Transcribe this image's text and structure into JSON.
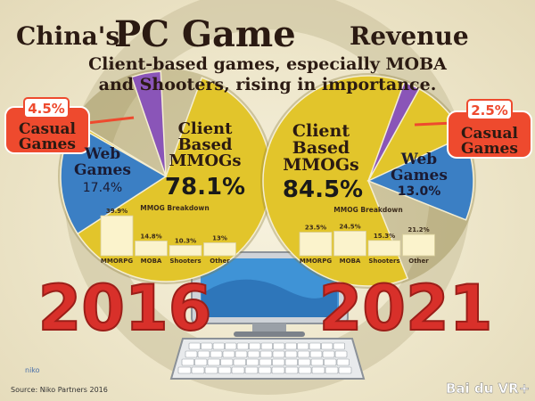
{
  "header": {
    "title_pre": "China's",
    "title_main": "PC Game",
    "title_post": "Revenue",
    "subtitle_line1": "Client-based games, especially MOBA",
    "subtitle_line2": "and Shooters, rising in importance."
  },
  "footer": {
    "source": "Source: Niko Partners 2016",
    "logo_text": "niko",
    "watermark": "Bai du VR+"
  },
  "colors": {
    "client": "#e2c52b",
    "web": "#3b7fc4",
    "casual": "#8a55b8",
    "year": "#d8302a",
    "callout": "#ee4a2e",
    "ink": "#2b1a12",
    "bar": "#fbf3cc"
  },
  "chart_data": [
    {
      "type": "pie",
      "year": "2016",
      "categories": [
        "Client Based MMOGs",
        "Web Games",
        "Casual Games"
      ],
      "values": [
        78.1,
        17.4,
        4.5
      ],
      "labels": {
        "client_l1": "Client",
        "client_l2": "Based",
        "client_l3": "MMOGs",
        "client_val": "78.1%",
        "web_l1": "Web",
        "web_l2": "Games",
        "web_val": "17.4%",
        "casual_val": "4.5%",
        "casual_l1": "Casual",
        "casual_l2": "Games"
      },
      "breakdown": {
        "type": "bar",
        "title": "MMOG Breakdown",
        "categories": [
          "MMORPG",
          "MOBA",
          "Shooters",
          "Other"
        ],
        "values": [
          39.9,
          14.8,
          10.3,
          13
        ],
        "value_labels": [
          "39.9%",
          "14.8%",
          "10.3%",
          "13%"
        ]
      }
    },
    {
      "type": "pie",
      "year": "2021",
      "categories": [
        "Client Based MMOGs",
        "Web Games",
        "Casual Games"
      ],
      "values": [
        84.5,
        13.0,
        2.5
      ],
      "labels": {
        "client_l1": "Client",
        "client_l2": "Based",
        "client_l3": "MMOGs",
        "client_val": "84.5%",
        "web_l1": "Web",
        "web_l2": "Games",
        "web_val": "13.0%",
        "casual_val": "2.5%",
        "casual_l1": "Casual",
        "casual_l2": "Games"
      },
      "breakdown": {
        "type": "bar",
        "title": "MMOG Breakdown",
        "categories": [
          "MMORPG",
          "MOBA",
          "Shooters",
          "Other"
        ],
        "values": [
          23.5,
          24.5,
          15.3,
          21.2
        ],
        "value_labels": [
          "23.5%",
          "24.5%",
          "15.3%",
          "21.2%"
        ]
      }
    }
  ]
}
